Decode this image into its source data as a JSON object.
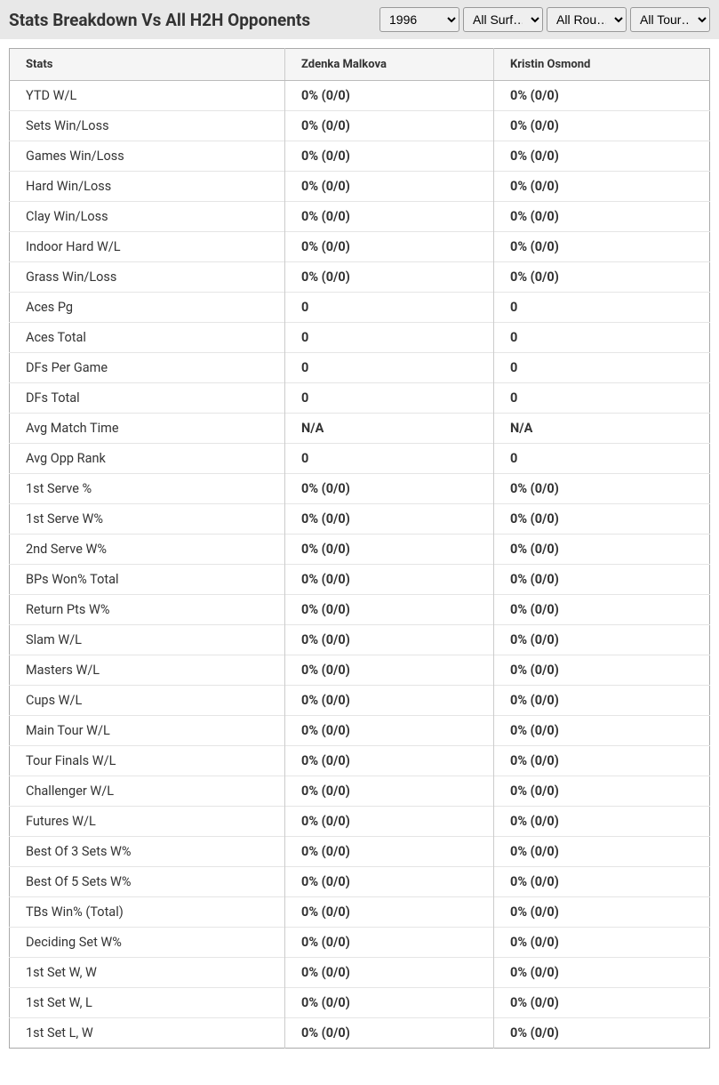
{
  "header": {
    "title": "Stats Breakdown Vs All H2H Opponents"
  },
  "filters": {
    "year": {
      "selected": "1996",
      "options": [
        "1996"
      ]
    },
    "surface": {
      "selected": "All Surf…",
      "options": [
        "All Surf…"
      ]
    },
    "round": {
      "selected": "All Rou…",
      "options": [
        "All Rou…"
      ]
    },
    "tour": {
      "selected": "All Tour…",
      "options": [
        "All Tour…"
      ]
    }
  },
  "table": {
    "columns": [
      "Stats",
      "Zdenka Malkova",
      "Kristin Osmond"
    ],
    "rows": [
      [
        "YTD W/L",
        "0% (0/0)",
        "0% (0/0)"
      ],
      [
        "Sets Win/Loss",
        "0% (0/0)",
        "0% (0/0)"
      ],
      [
        "Games Win/Loss",
        "0% (0/0)",
        "0% (0/0)"
      ],
      [
        "Hard Win/Loss",
        "0% (0/0)",
        "0% (0/0)"
      ],
      [
        "Clay Win/Loss",
        "0% (0/0)",
        "0% (0/0)"
      ],
      [
        "Indoor Hard W/L",
        "0% (0/0)",
        "0% (0/0)"
      ],
      [
        "Grass Win/Loss",
        "0% (0/0)",
        "0% (0/0)"
      ],
      [
        "Aces Pg",
        "0",
        "0"
      ],
      [
        "Aces Total",
        "0",
        "0"
      ],
      [
        "DFs Per Game",
        "0",
        "0"
      ],
      [
        "DFs Total",
        "0",
        "0"
      ],
      [
        "Avg Match Time",
        "N/A",
        "N/A"
      ],
      [
        "Avg Opp Rank",
        "0",
        "0"
      ],
      [
        "1st Serve %",
        "0% (0/0)",
        "0% (0/0)"
      ],
      [
        "1st Serve W%",
        "0% (0/0)",
        "0% (0/0)"
      ],
      [
        "2nd Serve W%",
        "0% (0/0)",
        "0% (0/0)"
      ],
      [
        "BPs Won% Total",
        "0% (0/0)",
        "0% (0/0)"
      ],
      [
        "Return Pts W%",
        "0% (0/0)",
        "0% (0/0)"
      ],
      [
        "Slam W/L",
        "0% (0/0)",
        "0% (0/0)"
      ],
      [
        "Masters W/L",
        "0% (0/0)",
        "0% (0/0)"
      ],
      [
        "Cups W/L",
        "0% (0/0)",
        "0% (0/0)"
      ],
      [
        "Main Tour W/L",
        "0% (0/0)",
        "0% (0/0)"
      ],
      [
        "Tour Finals W/L",
        "0% (0/0)",
        "0% (0/0)"
      ],
      [
        "Challenger W/L",
        "0% (0/0)",
        "0% (0/0)"
      ],
      [
        "Futures W/L",
        "0% (0/0)",
        "0% (0/0)"
      ],
      [
        "Best Of 3 Sets W%",
        "0% (0/0)",
        "0% (0/0)"
      ],
      [
        "Best Of 5 Sets W%",
        "0% (0/0)",
        "0% (0/0)"
      ],
      [
        "TBs Win% (Total)",
        "0% (0/0)",
        "0% (0/0)"
      ],
      [
        "Deciding Set W%",
        "0% (0/0)",
        "0% (0/0)"
      ],
      [
        "1st Set W, W",
        "0% (0/0)",
        "0% (0/0)"
      ],
      [
        "1st Set W, L",
        "0% (0/0)",
        "0% (0/0)"
      ],
      [
        "1st Set L, W",
        "0% (0/0)",
        "0% (0/0)"
      ]
    ]
  }
}
